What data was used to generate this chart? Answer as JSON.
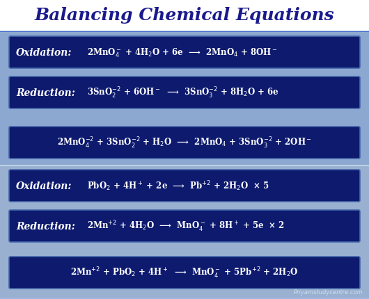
{
  "title": "Balancing Chemical Equations",
  "title_color": "#1a1a8c",
  "title_fontsize": 18,
  "bg_top_color": "#ffffff",
  "bg_bottom_color": "#aabbdd",
  "panel1_color": "#7090c8",
  "panel2_color": "#8899bb",
  "box_color": "#0d1a6e",
  "box_edge_color": "#4466aa",
  "white": "#ffffff",
  "watermark_color": "#ccddee",
  "box1_rows": [
    {
      "label": "Oxidation:",
      "eq": "2MnO$_4^-$ + 4H$_2$O + 6e  ⟶  2MnO$_4$ + 8OH$^-$",
      "centered": false
    },
    {
      "label": "Reduction:",
      "eq": "3SnO$_2^{-2}$ + 6OH$^-$  ⟶  3SnO$_3^{-2}$ + 8H$_2$O + 6e",
      "centered": false
    },
    {
      "label": "",
      "eq": "2MnO$_4^{-2}$ + 3SnO$_2^{-2}$ + H$_2$O  ⟶  2MnO$_4$ + 3SnO$_3^{-2}$ + 2OH$^-$",
      "centered": true
    }
  ],
  "box2_rows": [
    {
      "label": "Oxidation:",
      "eq": "PbO$_2$ + 4H$^+$ + 2e  ⟶  Pb$^{+2}$ + 2H$_2$O  × 5",
      "centered": false
    },
    {
      "label": "Reduction:",
      "eq": "2Mn$^{+2}$ + 4H$_2$O  ⟶  MnO$_4^-$ + 8H$^+$ + 5e  × 2",
      "centered": false
    },
    {
      "label": "",
      "eq": "2Mn$^{+2}$ + PbO$_2$ + 4H$^+$  ⟶  MnO$_4^-$ + 5Pb$^{+2}$ + 2H$_2$O",
      "centered": true
    }
  ],
  "watermark": "Priyamstudycentre.com"
}
